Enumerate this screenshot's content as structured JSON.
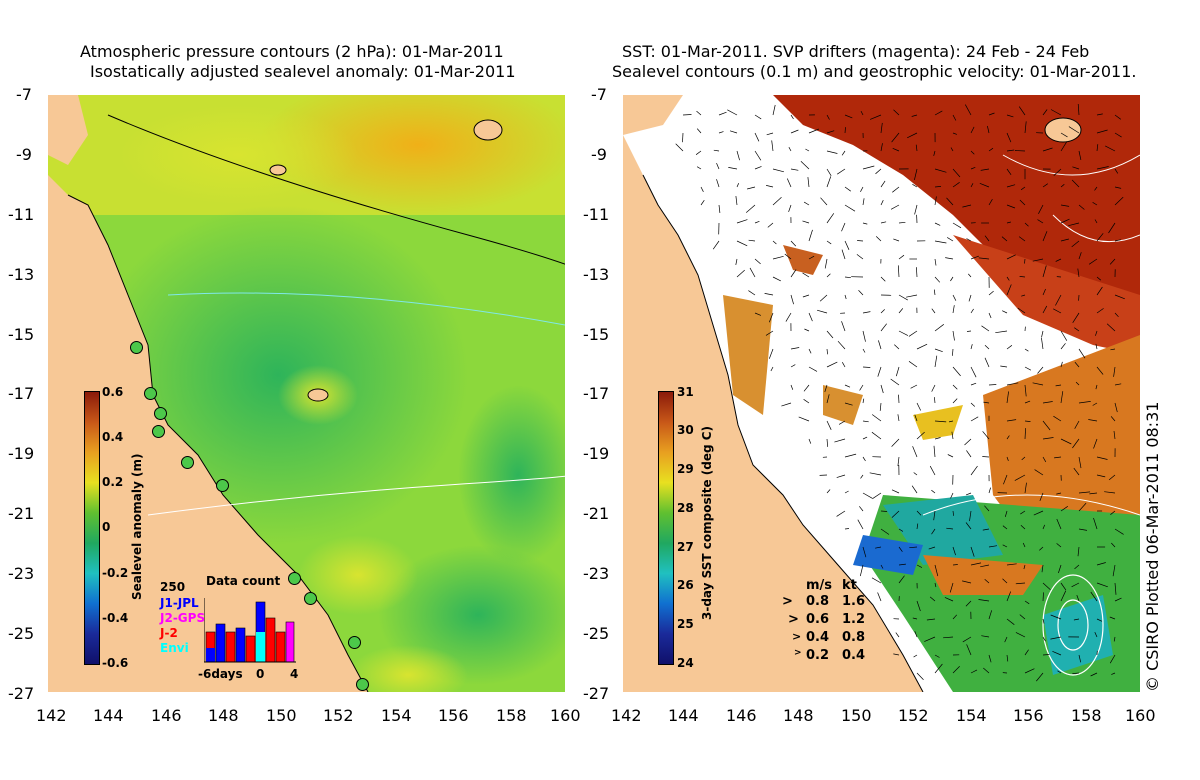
{
  "left_panel": {
    "title_line1": "Atmospheric pressure contours (2 hPa): 01-Mar-2011",
    "title_line2": "Isostatically adjusted sealevel anomaly: 01-Mar-2011",
    "y_ticks": [
      "-7",
      "-9",
      "-11",
      "-13",
      "-15",
      "-17",
      "-19",
      "-21",
      "-23",
      "-25",
      "-27"
    ],
    "x_ticks": [
      "142",
      "144",
      "146",
      "148",
      "150",
      "152",
      "154",
      "156",
      "158",
      "160"
    ],
    "colorbar": {
      "label": "Sealevel anomaly (m)",
      "ticks": [
        "0.6",
        "0.4",
        "0.2",
        "0",
        "-0.2",
        "-0.4",
        "-0.6"
      ]
    },
    "data_count": {
      "title": "Data count",
      "max_label": "250",
      "series": [
        {
          "name": "J1-JPL",
          "color": "#0000ff"
        },
        {
          "name": "J2-GPS",
          "color": "#ff00ff"
        },
        {
          "name": "J-2",
          "color": "#ff0000"
        },
        {
          "name": "Envi",
          "color": "#00ffff"
        }
      ],
      "x_labels": [
        "-6days",
        "0",
        "4"
      ]
    }
  },
  "right_panel": {
    "title_line1": "SST: 01-Mar-2011. SVP drifters (magenta): 24 Feb - 24 Feb",
    "title_line2": "Sealevel contours (0.1 m) and geostrophic velocity: 01-Mar-2011.",
    "y_ticks": [
      "-7",
      "-9",
      "-11",
      "-13",
      "-15",
      "-17",
      "-19",
      "-21",
      "-23",
      "-25",
      "-27"
    ],
    "x_ticks": [
      "142",
      "144",
      "146",
      "148",
      "150",
      "152",
      "154",
      "156",
      "158",
      "160"
    ],
    "colorbar": {
      "label": "3-day SST composite (deg C)",
      "ticks": [
        "31",
        "30",
        "29",
        "28",
        "27",
        "26",
        "25",
        "24"
      ]
    },
    "velocity_legend": {
      "header_ms": "m/s",
      "header_kt": "kt",
      "rows": [
        {
          "ms": "0.8",
          "kt": "1.6"
        },
        {
          "ms": "0.6",
          "kt": "1.2"
        },
        {
          "ms": "0.4",
          "kt": "0.8"
        },
        {
          "ms": "0.2",
          "kt": "0.4"
        }
      ]
    }
  },
  "credit": "© CSIRO Plotted 06-Mar-2011 08:31",
  "colors": {
    "land": "#f7c896",
    "sla_green": "#4cc84a",
    "sla_yellow": "#c8e032",
    "sst_red": "#b0280a",
    "sst_orange": "#d87820",
    "sst_green": "#40b040",
    "cloud": "#ffffff"
  }
}
